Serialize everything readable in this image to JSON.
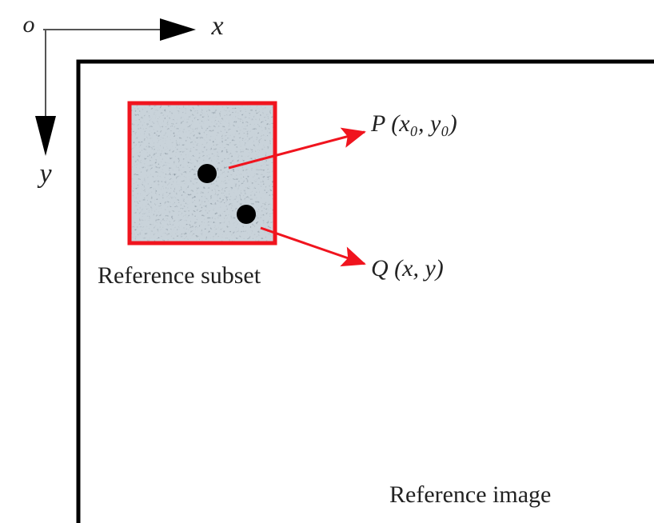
{
  "axes": {
    "origin": "o",
    "x": "x",
    "y": "y"
  },
  "subset": {
    "label": "Reference subset"
  },
  "points": [
    {
      "label": "P (x₀, y₀)"
    },
    {
      "label": "Q (x, y)"
    }
  ],
  "image": {
    "label": "Reference image"
  }
}
